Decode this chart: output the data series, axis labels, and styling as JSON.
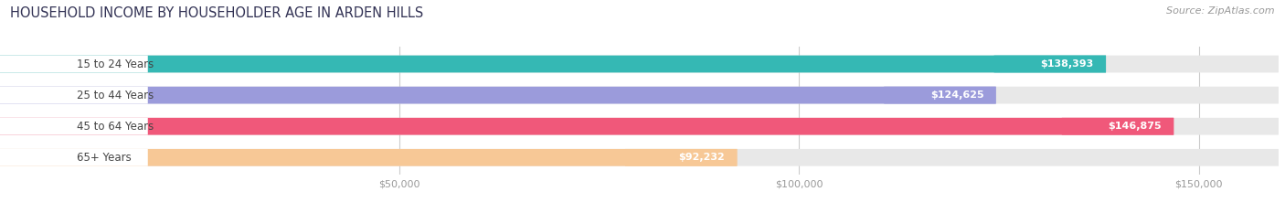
{
  "title": "HOUSEHOLD INCOME BY HOUSEHOLDER AGE IN ARDEN HILLS",
  "source": "Source: ZipAtlas.com",
  "categories": [
    "15 to 24 Years",
    "25 to 44 Years",
    "45 to 64 Years",
    "65+ Years"
  ],
  "values": [
    138393,
    124625,
    146875,
    92232
  ],
  "bar_colors": [
    "#35b8b4",
    "#9b9bdb",
    "#f0587a",
    "#f7c896"
  ],
  "bar_bg_color": "#e8e8e8",
  "value_labels": [
    "$138,393",
    "$124,625",
    "$146,875",
    "$92,232"
  ],
  "x_ticks": [
    50000,
    100000,
    150000
  ],
  "x_tick_labels": [
    "$50,000",
    "$100,000",
    "$150,000"
  ],
  "xlim_min": 0,
  "xlim_max": 160000,
  "background_color": "#ffffff",
  "title_fontsize": 10.5,
  "source_fontsize": 8,
  "bar_label_fontsize": 8.5,
  "value_label_fontsize": 8.0,
  "x_tick_fontsize": 8.0
}
